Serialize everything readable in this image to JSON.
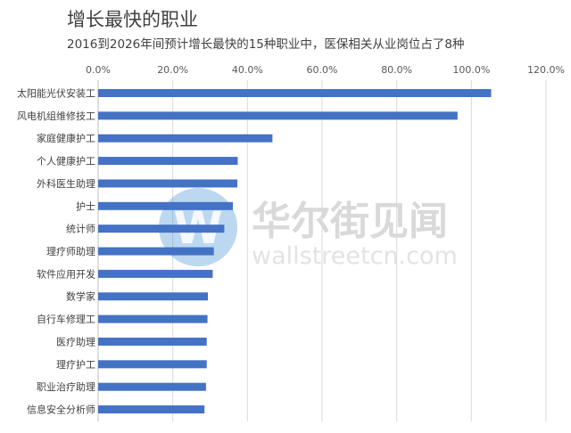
{
  "title": "增长最快的职业",
  "subtitle": "2016到2026年间预计增长最快的15种职业中，医保相关从业岗位占了8种",
  "watermark": {
    "logo_letter": "W",
    "name": "华尔街见闻",
    "url": "wallstreetcn.com"
  },
  "colors": {
    "bar": "#4472c4",
    "grid": "#d9d9d9",
    "watermark_logo": "#3f8fd6"
  },
  "chart_data": {
    "type": "bar",
    "orientation": "horizontal",
    "title": "增长最快的职业",
    "subtitle": "2016到2026年间预计增长最快的15种职业中，医保相关从业岗位占了8种",
    "xlim": [
      0,
      120
    ],
    "x_ticks": [
      "0.0%",
      "20.0%",
      "40.0%",
      "60.0%",
      "80.0%",
      "100.0%",
      "120.0%"
    ],
    "x_tick_values": [
      0,
      20,
      40,
      60,
      80,
      100,
      120
    ],
    "axis_position": "top",
    "grid": true,
    "categories": [
      "太阳能光伏安装工",
      "风电机组维修技工",
      "家庭健康护工",
      "个人健康护工",
      "外科医生助理",
      "护士",
      "统计师",
      "理疗师助理",
      "软件应用开发",
      "数学家",
      "自行车修理工",
      "医疗助理",
      "理疗护工",
      "职业治疗助理",
      "信息安全分析师"
    ],
    "values": [
      105.3,
      96.3,
      46.7,
      37.4,
      37.3,
      36.1,
      33.8,
      31.0,
      30.7,
      29.4,
      29.3,
      29.1,
      29.1,
      28.9,
      28.5
    ]
  }
}
